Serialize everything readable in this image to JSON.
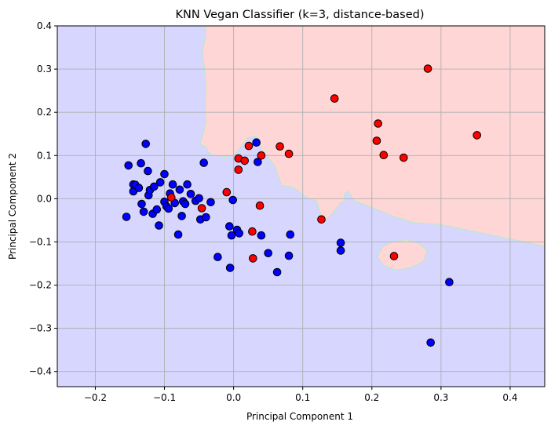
{
  "chart_data": {
    "type": "scatter",
    "title": "KNN Vegan Classifier (k=3, distance-based)",
    "xlabel": "Principal Component 1",
    "ylabel": "Principal Component 2",
    "xlim": [
      -0.255,
      0.45
    ],
    "ylim": [
      -0.435,
      0.4
    ],
    "xticks": [
      -0.2,
      -0.1,
      0.0,
      0.1,
      0.2,
      0.3,
      0.4
    ],
    "yticks": [
      -0.4,
      -0.3,
      -0.2,
      -0.1,
      0.0,
      0.1,
      0.2,
      0.3,
      0.4
    ],
    "xtick_labels": [
      "−0.2",
      "−0.1",
      "0.0",
      "0.1",
      "0.2",
      "0.3",
      "0.4"
    ],
    "ytick_labels": [
      "−0.4",
      "−0.3",
      "−0.2",
      "−0.1",
      "0.0",
      "0.1",
      "0.2",
      "0.3",
      "0.4"
    ],
    "grid": true,
    "colors": {
      "class_a_region": "#d6d6ff",
      "class_b_region": "#ffd6d6",
      "class_a_point": "#0000ff",
      "class_b_point": "#ff0000",
      "grid": "#b0b0b0"
    },
    "decision_regions": {
      "class_b_main_boundary": [
        [
          -0.04,
          0.4
        ],
        [
          -0.041,
          0.37
        ],
        [
          -0.045,
          0.34
        ],
        [
          -0.042,
          0.3
        ],
        [
          -0.04,
          0.26
        ],
        [
          -0.041,
          0.22
        ],
        [
          -0.04,
          0.18
        ],
        [
          -0.043,
          0.155
        ],
        [
          -0.047,
          0.135
        ],
        [
          -0.048,
          0.125
        ],
        [
          -0.043,
          0.122
        ],
        [
          -0.04,
          0.12
        ],
        [
          -0.036,
          0.107
        ],
        [
          -0.03,
          0.1
        ],
        [
          -0.01,
          0.098
        ],
        [
          0.0,
          0.1
        ],
        [
          0.008,
          0.115
        ],
        [
          0.02,
          0.14
        ],
        [
          0.03,
          0.145
        ],
        [
          0.036,
          0.14
        ],
        [
          0.04,
          0.115
        ],
        [
          0.05,
          0.095
        ],
        [
          0.06,
          0.075
        ],
        [
          0.065,
          0.05
        ],
        [
          0.07,
          0.03
        ],
        [
          0.085,
          0.027
        ],
        [
          0.1,
          0.01
        ],
        [
          0.11,
          0.0
        ],
        [
          0.12,
          -0.005
        ],
        [
          0.125,
          -0.03
        ],
        [
          0.13,
          -0.055
        ],
        [
          0.145,
          -0.03
        ],
        [
          0.155,
          -0.01
        ],
        [
          0.16,
          -0.005
        ],
        [
          0.16,
          0.01
        ],
        [
          0.165,
          0.018
        ],
        [
          0.175,
          -0.005
        ],
        [
          0.2,
          -0.02
        ],
        [
          0.23,
          -0.04
        ],
        [
          0.26,
          -0.055
        ],
        [
          0.3,
          -0.06
        ],
        [
          0.33,
          -0.07
        ],
        [
          0.36,
          -0.08
        ],
        [
          0.39,
          -0.09
        ],
        [
          0.42,
          -0.1
        ],
        [
          0.45,
          -0.11
        ],
        [
          0.45,
          0.4
        ]
      ],
      "class_b_island_boundary": [
        [
          0.208,
          -0.135
        ],
        [
          0.215,
          -0.112
        ],
        [
          0.23,
          -0.1
        ],
        [
          0.25,
          -0.095
        ],
        [
          0.27,
          -0.105
        ],
        [
          0.28,
          -0.12
        ],
        [
          0.275,
          -0.145
        ],
        [
          0.255,
          -0.16
        ],
        [
          0.235,
          -0.165
        ],
        [
          0.218,
          -0.155
        ]
      ]
    },
    "series": [
      {
        "class": "blue",
        "points": [
          [
            -0.155,
            -0.042
          ],
          [
            -0.152,
            0.077
          ],
          [
            -0.145,
            0.033
          ],
          [
            -0.145,
            0.017
          ],
          [
            -0.142,
            0.032
          ],
          [
            -0.137,
            0.025
          ],
          [
            -0.134,
            0.082
          ],
          [
            -0.133,
            -0.012
          ],
          [
            -0.13,
            -0.03
          ],
          [
            -0.127,
            0.127
          ],
          [
            -0.124,
            0.064
          ],
          [
            -0.123,
            0.008
          ],
          [
            -0.121,
            0.02
          ],
          [
            -0.117,
            -0.035
          ],
          [
            -0.115,
            0.028
          ],
          [
            -0.111,
            -0.025
          ],
          [
            -0.108,
            -0.062
          ],
          [
            -0.106,
            0.038
          ],
          [
            -0.1,
            0.057
          ],
          [
            -0.1,
            -0.007
          ],
          [
            -0.097,
            -0.018
          ],
          [
            -0.094,
            -0.023
          ],
          [
            -0.092,
            0.012
          ],
          [
            -0.088,
            0.033
          ],
          [
            -0.085,
            -0.01
          ],
          [
            -0.08,
            -0.083
          ],
          [
            -0.078,
            0.021
          ],
          [
            -0.075,
            -0.04
          ],
          [
            -0.073,
            -0.006
          ],
          [
            -0.07,
            -0.012
          ],
          [
            -0.067,
            0.033
          ],
          [
            -0.062,
            0.011
          ],
          [
            -0.055,
            -0.005
          ],
          [
            -0.05,
            0.001
          ],
          [
            -0.048,
            -0.048
          ],
          [
            -0.043,
            0.083
          ],
          [
            -0.04,
            -0.043
          ],
          [
            -0.033,
            -0.008
          ],
          [
            -0.023,
            -0.135
          ],
          [
            -0.006,
            -0.064
          ],
          [
            -0.005,
            -0.16
          ],
          [
            -0.003,
            -0.085
          ],
          [
            -0.001,
            -0.003
          ],
          [
            0.005,
            -0.072
          ],
          [
            0.008,
            -0.08
          ],
          [
            0.033,
            0.13
          ],
          [
            0.035,
            0.085
          ],
          [
            0.04,
            -0.085
          ],
          [
            0.05,
            -0.126
          ],
          [
            0.063,
            -0.17
          ],
          [
            0.08,
            -0.132
          ],
          [
            0.082,
            -0.083
          ],
          [
            0.155,
            -0.102
          ],
          [
            0.155,
            -0.12
          ],
          [
            0.312,
            -0.193
          ],
          [
            0.285,
            -0.333
          ]
        ]
      },
      {
        "class": "red",
        "points": [
          [
            -0.09,
            0.003
          ],
          [
            -0.046,
            -0.022
          ],
          [
            -0.01,
            0.015
          ],
          [
            0.007,
            0.093
          ],
          [
            0.007,
            0.067
          ],
          [
            0.016,
            0.088
          ],
          [
            0.022,
            0.122
          ],
          [
            0.027,
            -0.076
          ],
          [
            0.028,
            -0.138
          ],
          [
            0.038,
            -0.016
          ],
          [
            0.04,
            0.1
          ],
          [
            0.067,
            0.121
          ],
          [
            0.08,
            0.104
          ],
          [
            0.127,
            -0.048
          ],
          [
            0.146,
            0.232
          ],
          [
            0.207,
            0.134
          ],
          [
            0.209,
            0.174
          ],
          [
            0.217,
            0.101
          ],
          [
            0.246,
            0.095
          ],
          [
            0.232,
            -0.133
          ],
          [
            0.281,
            0.301
          ],
          [
            0.352,
            0.147
          ]
        ]
      }
    ]
  }
}
